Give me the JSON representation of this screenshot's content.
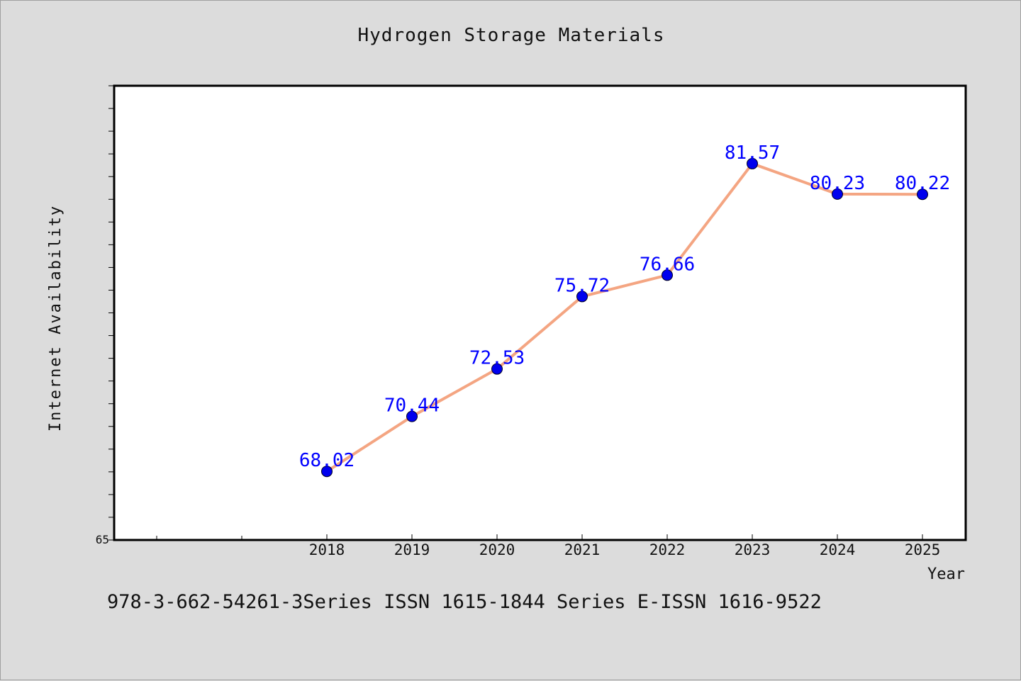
{
  "chart_data": {
    "type": "line",
    "title": "Hydrogen Storage Materials",
    "xlabel": "Year",
    "ylabel": "Internet Availability",
    "categories": [
      "2018",
      "2019",
      "2020",
      "2021",
      "2022",
      "2023",
      "2024",
      "2025"
    ],
    "series": [
      {
        "values": [
          68.02,
          70.44,
          72.53,
          75.72,
          76.66,
          81.57,
          80.23,
          80.22
        ]
      }
    ],
    "y_tick_labels": [
      "65"
    ],
    "ylim": [
      65,
      85
    ],
    "grid": false,
    "legend": "none",
    "line_color": "#f4a582",
    "marker_color": "#0000ee",
    "label_color": "#0000ff"
  },
  "footer": {
    "text": "978-3-662-54261-3Series ISSN 1615-1844 Series E-ISSN 1616-9522"
  }
}
